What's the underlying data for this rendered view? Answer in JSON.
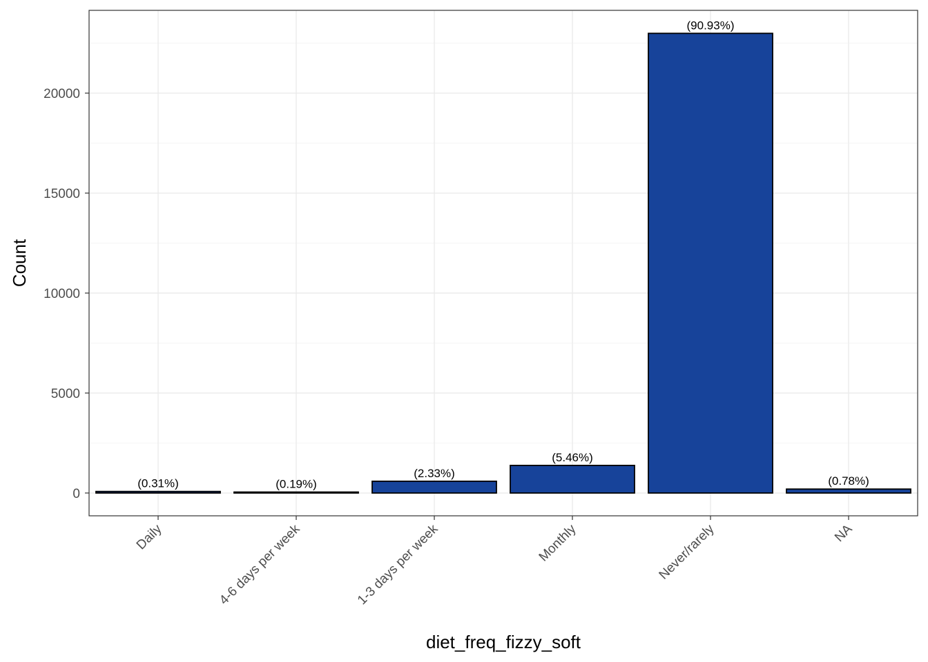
{
  "chart_data": {
    "type": "bar",
    "categories": [
      "Daily",
      "4-6 days per week",
      "1-3 days per week",
      "Monthly",
      "Never/rarely",
      "NA"
    ],
    "values": [
      78,
      48,
      589,
      1381,
      22990,
      197
    ],
    "labels": [
      "(0.31%)",
      "(0.19%)",
      "(2.33%)",
      "(5.46%)",
      "(90.93%)",
      "(0.78%)"
    ],
    "title": "",
    "xlabel": "diet_freq_fizzy_soft",
    "ylabel": "Count",
    "ylim": [
      -1140,
      24140
    ],
    "yticks": [
      0,
      5000,
      10000,
      15000,
      20000
    ],
    "ytick_labels": [
      "0",
      "5000",
      "10000",
      "15000",
      "20000"
    ],
    "grid": true,
    "legend": "none",
    "colors": {
      "bar_fill": "#17439A",
      "bar_stroke": "#000000",
      "grid_major": "#EBEBEB",
      "grid_minor": "#F5F5F5",
      "panel_border": "#333333"
    }
  }
}
